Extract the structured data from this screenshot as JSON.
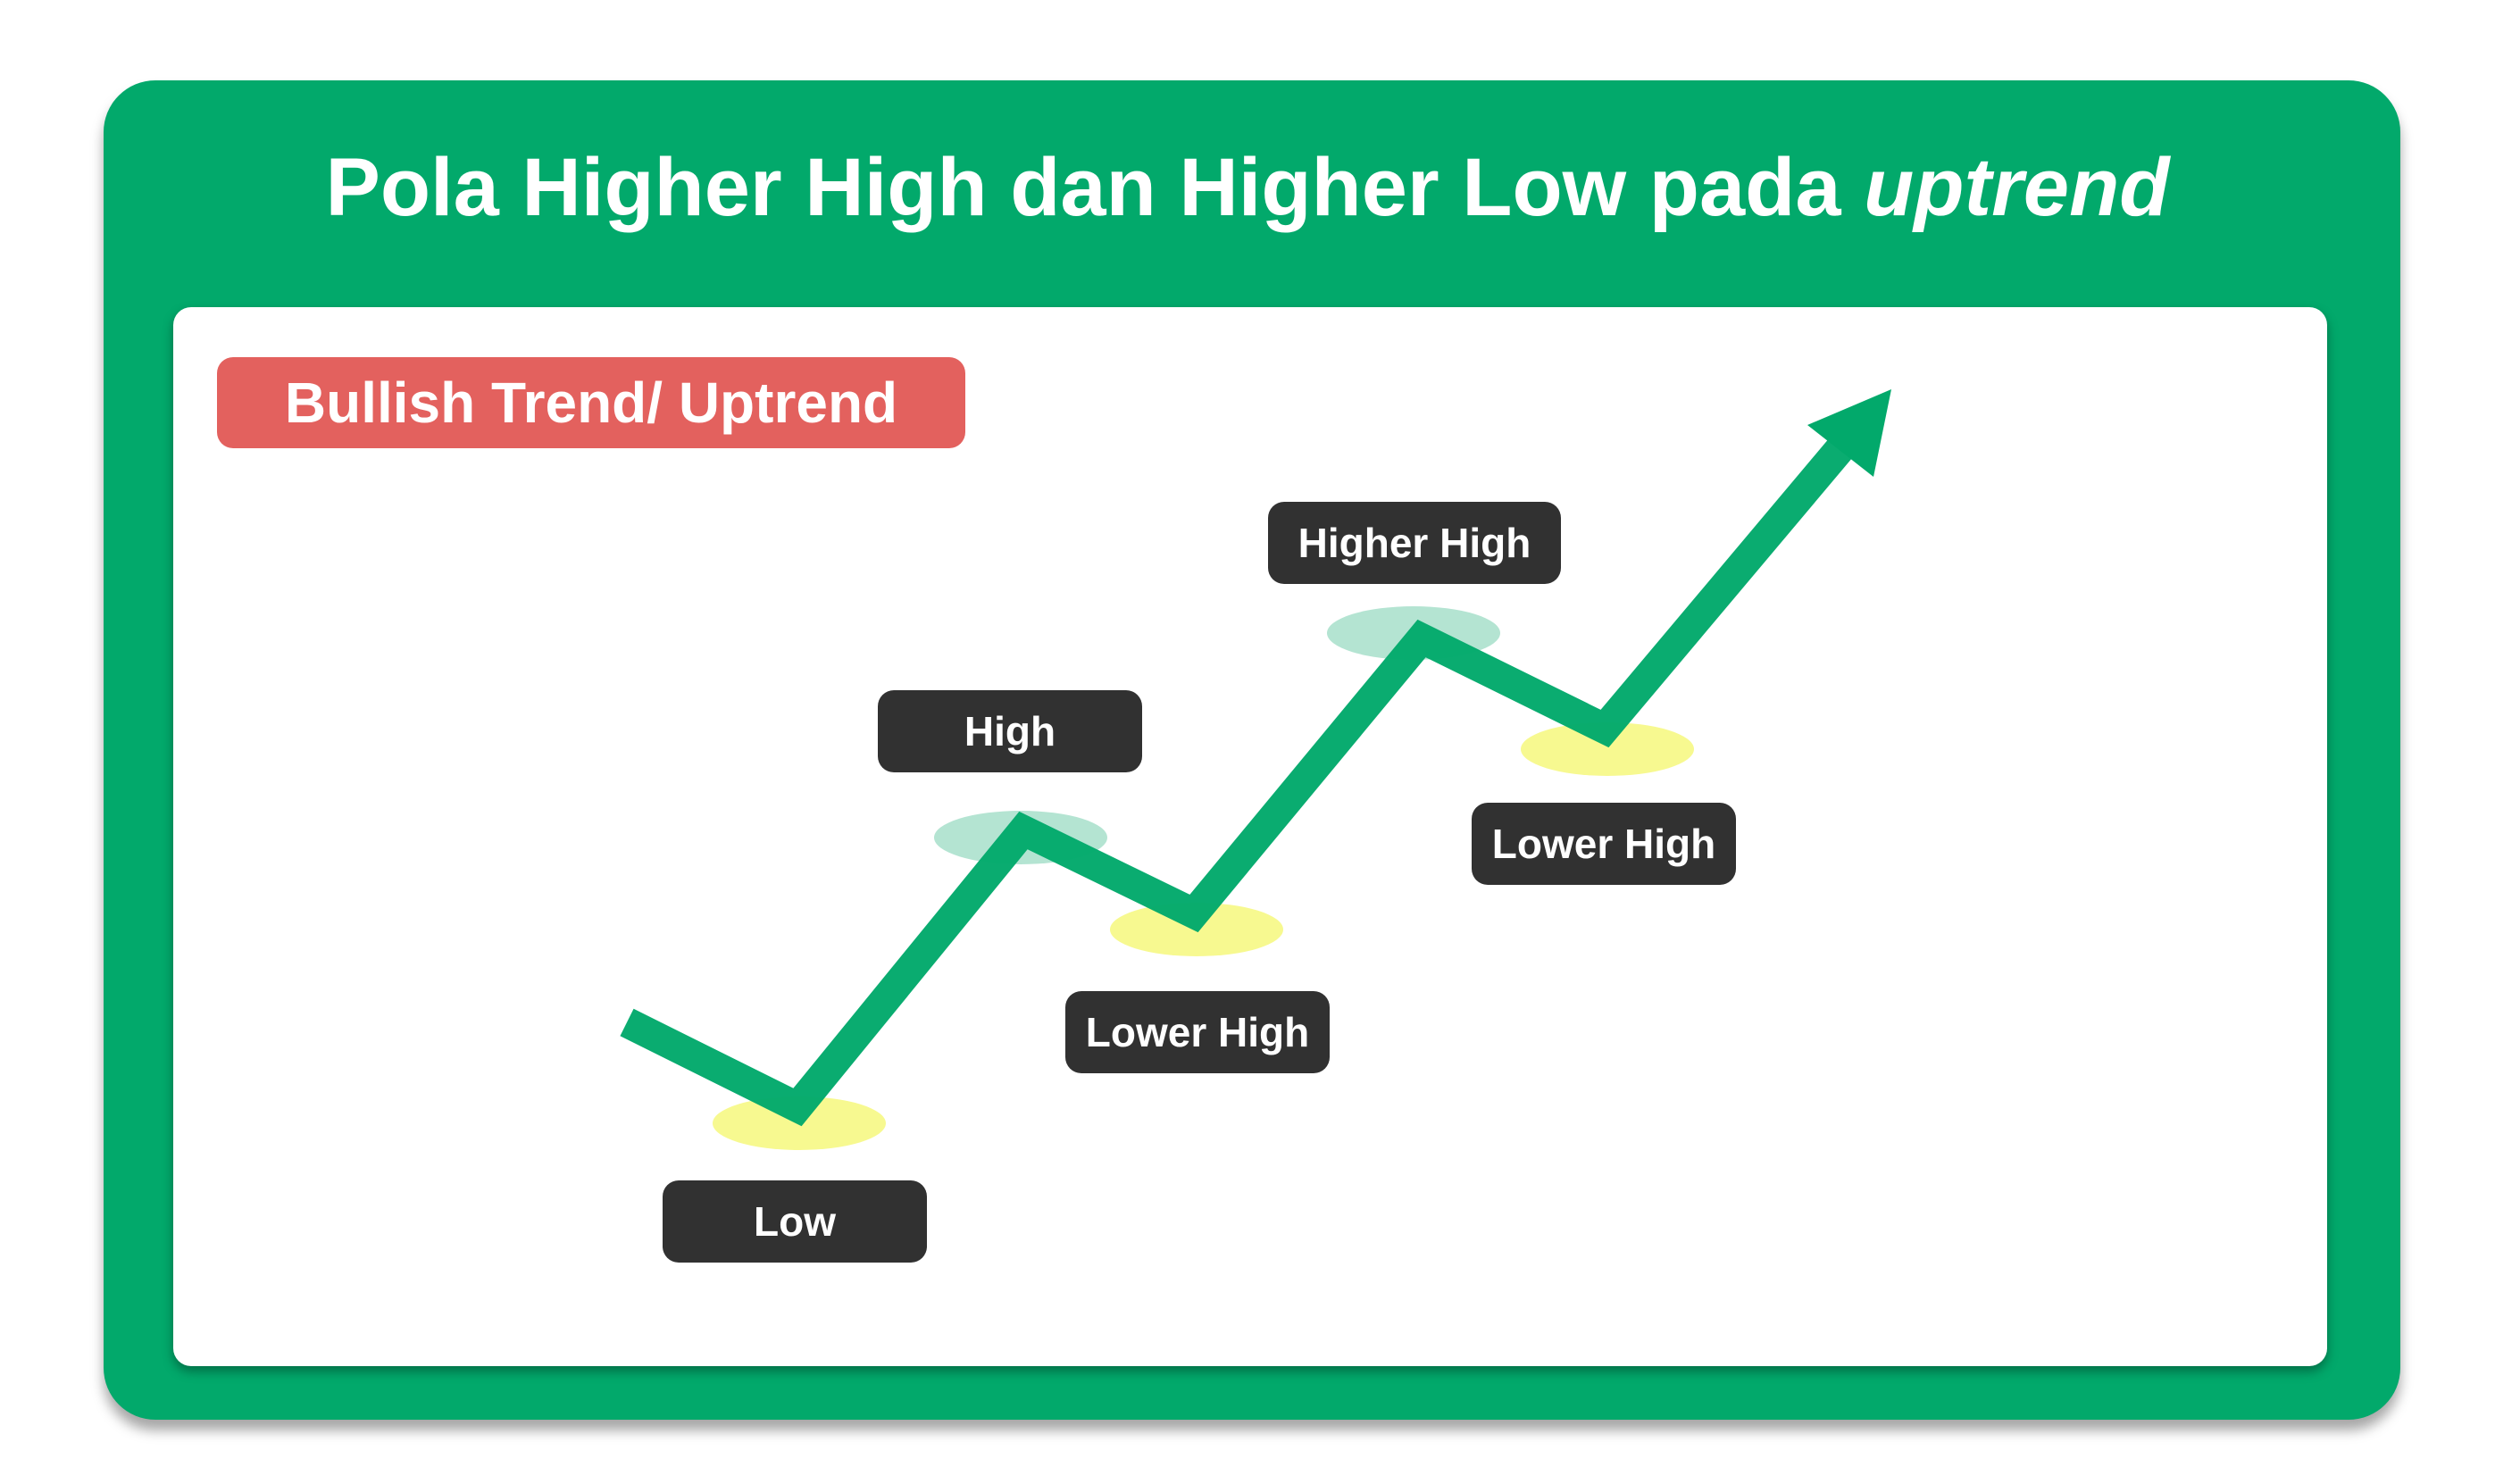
{
  "title": {
    "main": "Pola Higher High dan Higher Low pada",
    "emphasis": "uptrend"
  },
  "badge": "Bullish Trend/ Uptrend",
  "points": [
    {
      "id": "low",
      "label": "Low"
    },
    {
      "id": "high",
      "label": "High"
    },
    {
      "id": "lower-high-1",
      "label": "Lower High"
    },
    {
      "id": "higher-high",
      "label": "Higher High"
    },
    {
      "id": "lower-high-2",
      "label": "Lower High"
    }
  ],
  "colors": {
    "background_green": "#02a96b",
    "panel": "#ffffff",
    "badge": "#e3615e",
    "label": "#313131",
    "trend_line": "#02a96b",
    "low_highlight": "#f7f990",
    "high_highlight": "#b4e4d2"
  }
}
